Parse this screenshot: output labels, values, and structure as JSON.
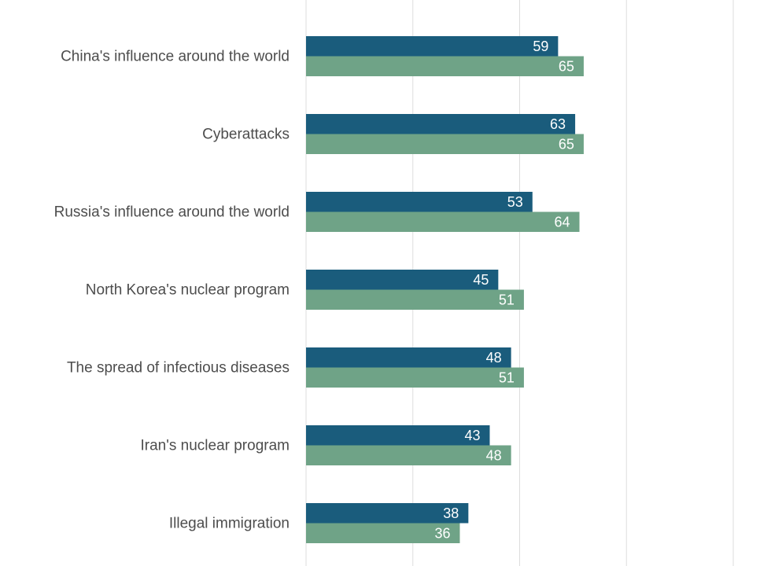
{
  "chart_data": {
    "type": "bar",
    "orientation": "horizontal",
    "categories": [
      "China's influence around the world",
      "Cyberattacks",
      "Russia's influence around the world",
      "North Korea's nuclear program",
      "The spread of infectious diseases",
      "Iran's nuclear program",
      "Illegal immigration"
    ],
    "series": [
      {
        "color": "#1a5c7c",
        "values": [
          59,
          63,
          53,
          45,
          48,
          43,
          38
        ]
      },
      {
        "color": "#6fa387",
        "values": [
          65,
          65,
          64,
          51,
          51,
          48,
          36
        ]
      }
    ],
    "xlim": [
      0,
      100
    ],
    "grid": true,
    "data_labels": true,
    "colors": {
      "gridline": "#dddddd",
      "label_text": "#4d4d4d",
      "value_text": "#ffffff"
    }
  }
}
